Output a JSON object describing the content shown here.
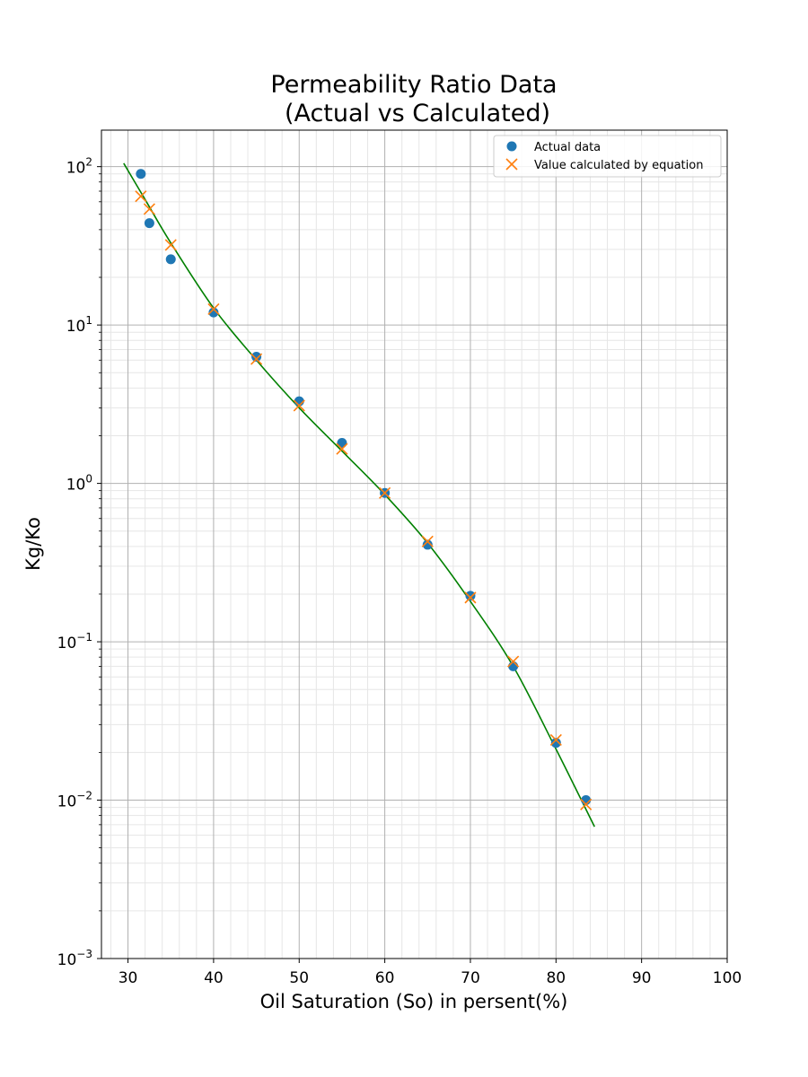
{
  "chart_data": {
    "type": "scatter",
    "title": [
      "Permeability Ratio Data",
      "(Actual vs Calculated)"
    ],
    "xlabel": "Oil Saturation (So) in persent(%)",
    "ylabel": "Kg/Ko",
    "xlim": [
      26.9,
      100
    ],
    "ylim": [
      0.001,
      170
    ],
    "yscale": "log",
    "xticks": [
      30,
      40,
      50,
      60,
      70,
      80,
      90,
      100
    ],
    "yticks": [
      {
        "value": 0.001,
        "base": "10",
        "exp": "−3"
      },
      {
        "value": 0.01,
        "base": "10",
        "exp": "−2"
      },
      {
        "value": 0.1,
        "base": "10",
        "exp": "−1"
      },
      {
        "value": 1,
        "base": "10",
        "exp": "0"
      },
      {
        "value": 10,
        "base": "10",
        "exp": "1"
      },
      {
        "value": 100,
        "base": "10",
        "exp": "2"
      }
    ],
    "grid": "major and minor",
    "legend_position": "top-right",
    "series": [
      {
        "name": "Actual data",
        "kind": "points",
        "marker": "circle",
        "color": "#1f77b4",
        "x": [
          31.5,
          32.5,
          35,
          40,
          45,
          50,
          55,
          60,
          65,
          70,
          75,
          80,
          83.5
        ],
        "y": [
          90,
          44,
          26,
          12,
          6.3,
          3.3,
          1.8,
          0.87,
          0.41,
          0.195,
          0.07,
          0.023,
          0.01
        ]
      },
      {
        "name": "Value calculated by equation",
        "kind": "points",
        "marker": "x",
        "color": "#ff7f0e",
        "x": [
          31.5,
          32.5,
          35,
          40,
          45,
          50,
          55,
          60,
          65,
          70,
          75,
          80,
          83.5
        ],
        "y": [
          65,
          54,
          32,
          12.6,
          6.1,
          3.1,
          1.65,
          0.87,
          0.43,
          0.19,
          0.075,
          0.024,
          0.0094
        ]
      },
      {
        "kind": "line",
        "color": "#008000",
        "x": [
          29.5,
          32,
          35,
          40,
          45,
          50,
          55,
          60,
          65,
          70,
          75,
          80,
          84.5
        ],
        "y": [
          105,
          62,
          33,
          12.8,
          6.0,
          3.0,
          1.6,
          0.85,
          0.42,
          0.18,
          0.07,
          0.021,
          0.0068
        ]
      }
    ]
  }
}
